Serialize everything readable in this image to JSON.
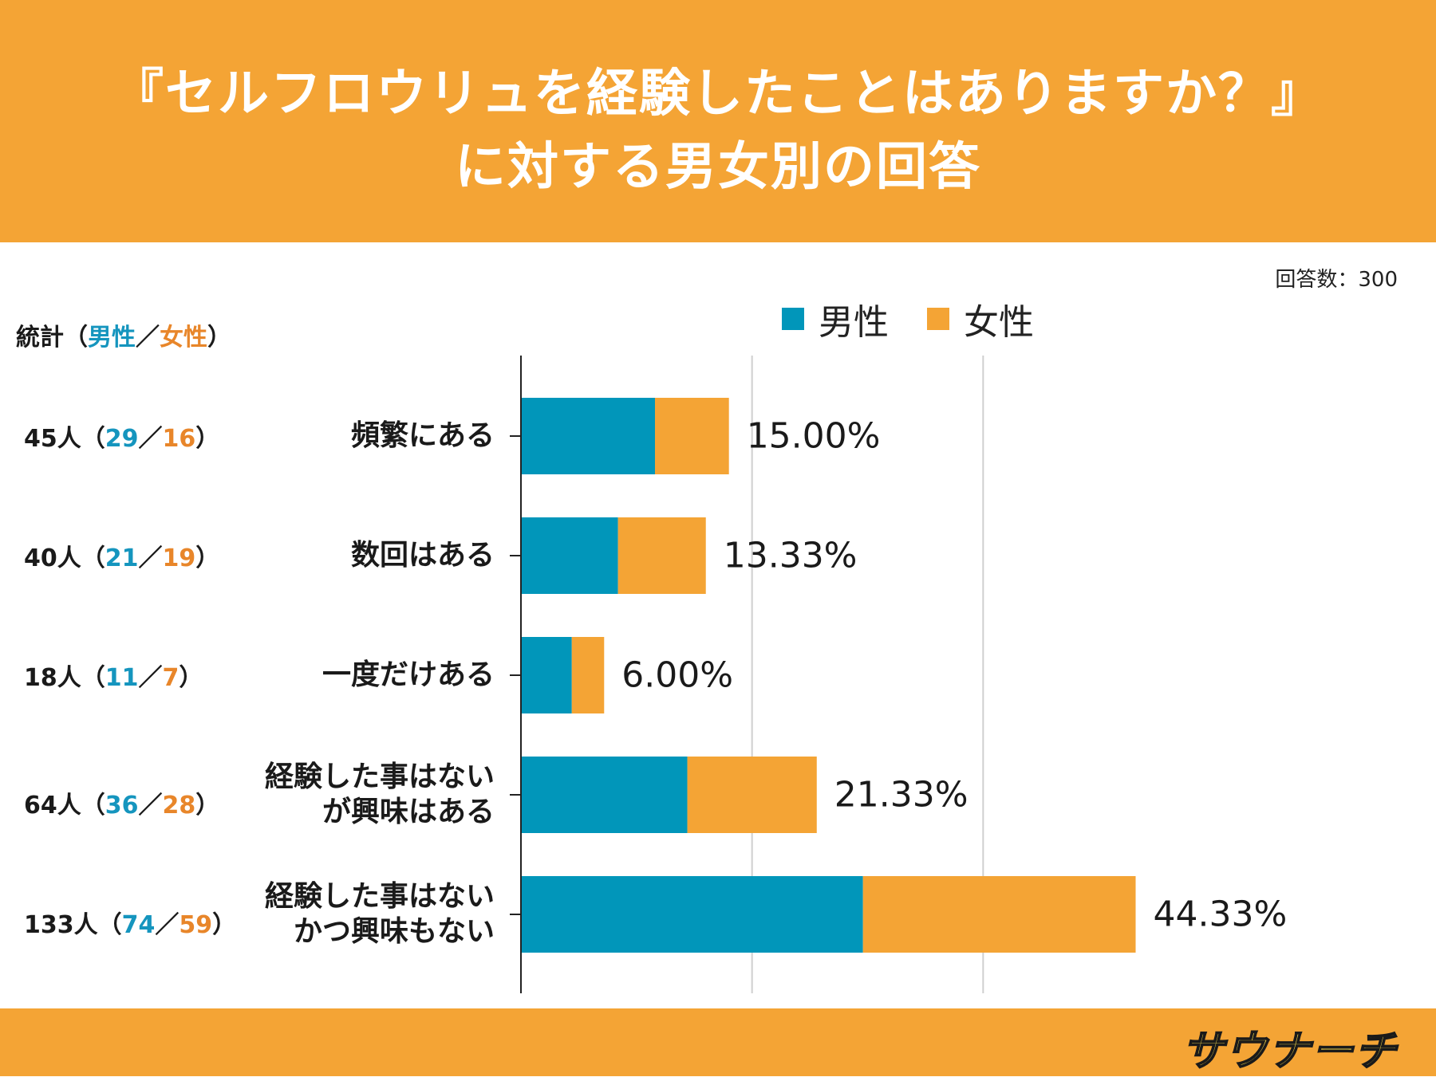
{
  "header": {
    "title_line1": "『セルフロウリュを経験したことはありますか？』",
    "title_line2": "に対する男女別の回答"
  },
  "respondents": "回答数：300",
  "stats_header": {
    "prefix": "統計（",
    "male": "男性",
    "sep": "／",
    "female": "女性",
    "suffix": "）"
  },
  "legend": {
    "male": "男性",
    "female": "女性"
  },
  "colors": {
    "male": "#0196BA",
    "female": "#F4A435",
    "accent": "#F4A435"
  },
  "rows": [
    {
      "label_lines": [
        "頻繁にある"
      ],
      "total": "45人",
      "male": "29",
      "female": "16",
      "percent": "15.00%"
    },
    {
      "label_lines": [
        "数回はある"
      ],
      "total": "40人",
      "male": "21",
      "female": "19",
      "percent": "13.33%"
    },
    {
      "label_lines": [
        "一度だけある"
      ],
      "total": "18人",
      "male": "11",
      "female": "7",
      "percent": "6.00%"
    },
    {
      "label_lines": [
        "経験した事はない",
        "が興味はある"
      ],
      "total": "64人",
      "male": "36",
      "female": "28",
      "percent": "21.33%"
    },
    {
      "label_lines": [
        "経験した事はない",
        "かつ興味もない"
      ],
      "total": "133人",
      "male": "74",
      "female": "59",
      "percent": "44.33%"
    }
  ],
  "logo": "サウナーチ",
  "chart_data": {
    "type": "bar",
    "orientation": "horizontal",
    "stacked": true,
    "title": "『セルフロウリュを経験したことはありますか？』に対する男女別の回答",
    "categories": [
      "頻繁にある",
      "数回はある",
      "一度だけある",
      "経験した事はないが興味はある",
      "経験した事はないかつ興味もない"
    ],
    "series": [
      {
        "name": "男性",
        "values": [
          29,
          21,
          11,
          36,
          74
        ]
      },
      {
        "name": "女性",
        "values": [
          16,
          19,
          7,
          28,
          59
        ]
      }
    ],
    "totals": [
      45,
      40,
      18,
      64,
      133
    ],
    "percent_labels": [
      "15.00%",
      "13.33%",
      "6.00%",
      "21.33%",
      "44.33%"
    ],
    "xlim": [
      0,
      150
    ],
    "grid": true,
    "legend": "top"
  }
}
